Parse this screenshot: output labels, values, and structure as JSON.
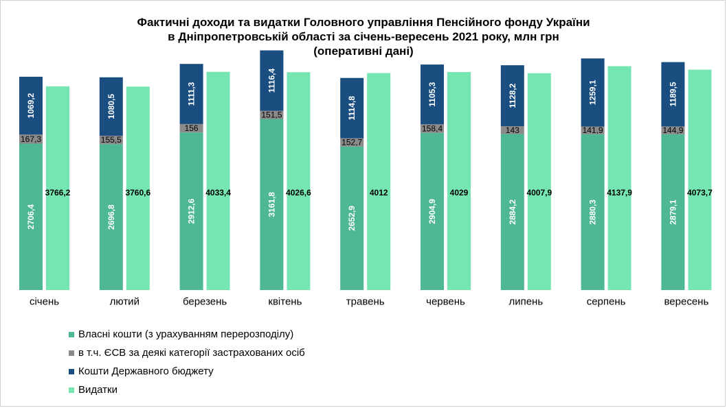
{
  "chart_data": {
    "type": "bar",
    "title_lines": [
      "Фактичні доходи та видатки Головного управління Пенсійного фонду України",
      "в Дніпропетровській області за січень-вересень 2021 року,  млн грн",
      "(оперативні дані)"
    ],
    "categories": [
      "січень",
      "лютий",
      "березень",
      "квітень",
      "травень",
      "червень",
      "липень",
      "серпень",
      "вересень"
    ],
    "series": [
      {
        "name": "Власні кошти (з урахуванням перерозподілу)",
        "color": "#4db892",
        "values": [
          2706.4,
          2696.8,
          2912.6,
          3161.8,
          2652.9,
          2904.9,
          2884.2,
          2880.3,
          2879.1
        ],
        "labels": [
          "2706,4",
          "2696,8",
          "2912,6",
          "3161,8",
          "2652,9",
          "2904,9",
          "2884,2",
          "2880,3",
          "2879,1"
        ]
      },
      {
        "name": "в т.ч. ЄСВ за деякі категорії застрахованих осіб",
        "color": "#8a8a8a",
        "values": [
          167.3,
          155.5,
          156,
          151.5,
          152.7,
          158.4,
          143,
          141.9,
          144.9
        ],
        "labels": [
          "167,3",
          "155,5",
          "156",
          "151,5",
          "152,7",
          "158,4",
          "143",
          "141,9",
          "144,9"
        ]
      },
      {
        "name": "Кошти Державного бюджету",
        "color": "#1a4e80",
        "values": [
          1069.2,
          1080.5,
          1111.3,
          1116.4,
          1114.8,
          1105.3,
          1128.2,
          1259.1,
          1189.5
        ],
        "labels": [
          "1069,2",
          "1080,5",
          "1111,3",
          "1116,4",
          "1114,8",
          "1105,3",
          "1128,2",
          "1259,1",
          "1189,5"
        ]
      },
      {
        "name": "Видатки",
        "color": "#75e6b1",
        "values": [
          3766.2,
          3760.6,
          4033.4,
          4026.6,
          4012,
          4029,
          4007.9,
          4137.9,
          4073.7
        ],
        "labels": [
          "3766,2",
          "3760,6",
          "4033,4",
          "4026,6",
          "4012",
          "4029",
          "4007,9",
          "4137,9",
          "4073,7"
        ]
      }
    ],
    "stacked_series": [
      0,
      1,
      2
    ],
    "ylim": [
      0,
      4500
    ],
    "grid": false,
    "legend_position": "bottom-left"
  }
}
